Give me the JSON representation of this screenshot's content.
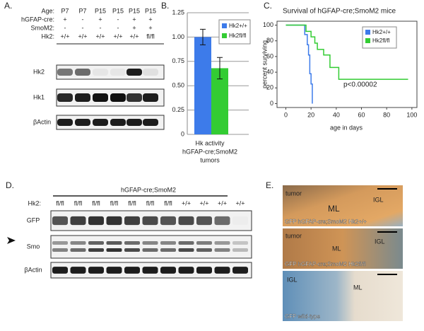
{
  "panel_labels": [
    "A.",
    "B.",
    "C.",
    "D.",
    "E."
  ],
  "panel_a": {
    "row_labels": [
      "Age:",
      "hGFAP-cre:",
      "SmoM2:",
      "Hk2:"
    ],
    "rows": [
      [
        "P7",
        "P7",
        "P15",
        "P15",
        "P15",
        "P15"
      ],
      [
        "+",
        "-",
        "+",
        "-",
        "+",
        "+"
      ],
      [
        "-",
        "-",
        "-",
        "-",
        "+",
        "+"
      ],
      [
        "+/+",
        "+/+",
        "+/+",
        "+/+",
        "+/+",
        "fl/fl"
      ]
    ],
    "blot_labels": [
      "Hk2",
      "Hk1",
      "βActin"
    ]
  },
  "chart_data": [
    {
      "type": "bar",
      "x_label": [
        "Hk activity",
        "hGFAP-cre;SmoM2",
        "tumors"
      ],
      "ylim": [
        0,
        1.25
      ],
      "yticks": [
        0,
        0.25,
        {
          "value": 0.5,
          "label": "0.50"
        },
        0.75,
        {
          "value": 1,
          "label": "1.00"
        },
        1.25
      ],
      "grid": true,
      "legend": "upper right",
      "series": [
        {
          "name": "Hk2+/+",
          "color": "#3d7bea",
          "values": [
            1.0
          ],
          "errors": [
            0.08
          ]
        },
        {
          "name": "Hk2fl/fl",
          "color": "#33cc33",
          "values": [
            0.68
          ],
          "errors": [
            0.11
          ]
        }
      ]
    },
    {
      "type": "line",
      "step": true,
      "title": "Survival of hGFAP-cre;SmoM2 mice",
      "xlabel": "age in days",
      "ylabel": "percent surviving",
      "annotation": "p<0.00002",
      "xlim": [
        -7,
        104
      ],
      "ylim": [
        -5,
        105
      ],
      "xticks": [
        0,
        20,
        40,
        60,
        80,
        100
      ],
      "yticks": [
        0,
        20,
        40,
        60,
        80,
        100
      ],
      "legend": "upper right",
      "series": [
        {
          "name": "Hk2+/+",
          "color": "#3d7bea",
          "x": [
            0,
            15,
            15,
            17,
            17,
            18,
            18,
            19,
            19,
            20,
            20,
            21,
            21
          ],
          "values": [
            100,
            100,
            88,
            88,
            75,
            75,
            62,
            62,
            38,
            38,
            25,
            25,
            0
          ]
        },
        {
          "name": "Hk2fl/fl",
          "color": "#33cc33",
          "x": [
            0,
            16,
            16,
            20,
            20,
            23,
            23,
            25,
            25,
            30,
            30,
            35,
            35,
            42,
            42,
            97
          ],
          "values": [
            100,
            100,
            92,
            92,
            85,
            85,
            77,
            77,
            69,
            69,
            62,
            62,
            46,
            46,
            31,
            31
          ]
        }
      ]
    }
  ],
  "panel_d": {
    "header": "hGFAP-cre;SmoM2",
    "row_label": "Hk2:",
    "lanes": [
      "fl/fl",
      "fl/fl",
      "fl/fl",
      "fl/fl",
      "fl/fl",
      "fl/fl",
      "fl/fl",
      "+/+",
      "+/+",
      "+/+",
      "+/+"
    ],
    "blot_labels": [
      "GFP",
      "Smo",
      "βActin"
    ]
  },
  "panel_e": {
    "images": [
      {
        "labels": [
          "tumor",
          "ML",
          "IGL"
        ],
        "caption": "GFP hGFAP-cre;SmoM2 Hk2+/+"
      },
      {
        "labels": [
          "tumor",
          "ML",
          "IGL"
        ],
        "caption": "GFP hGFAP-cre;SmoM2 Hk2fl/fl"
      },
      {
        "labels": [
          "IGL",
          "ML"
        ],
        "caption": "GFP wild-type"
      }
    ]
  }
}
